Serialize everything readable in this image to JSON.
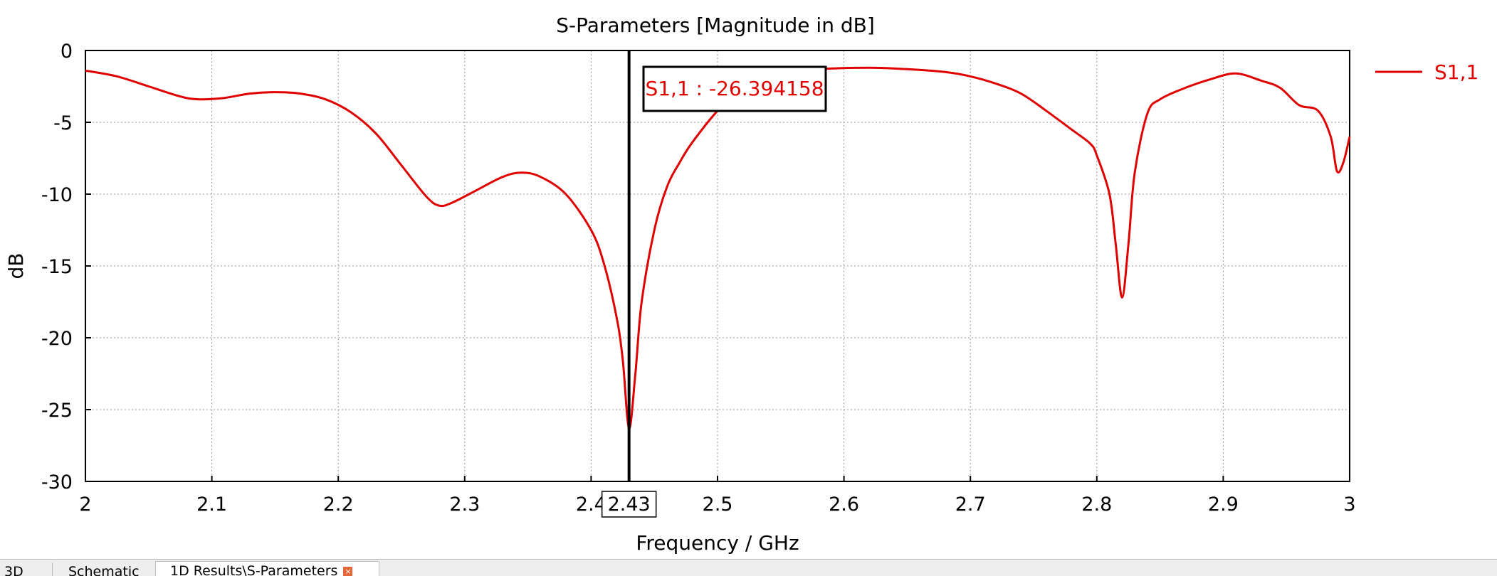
{
  "chart_data": {
    "type": "line",
    "title": "S-Parameters [Magnitude in dB]",
    "xlabel": "Frequency / GHz",
    "ylabel": "dB",
    "xlim": [
      2,
      3
    ],
    "ylim": [
      -30,
      0
    ],
    "x_ticks": [
      "2",
      "2.1",
      "2.2",
      "2.3",
      "2.4",
      "2.5",
      "2.6",
      "2.7",
      "2.8",
      "2.9",
      "3"
    ],
    "x_tick_values": [
      2.0,
      2.1,
      2.2,
      2.3,
      2.4,
      2.5,
      2.6,
      2.7,
      2.8,
      2.9,
      3.0
    ],
    "y_ticks": [
      "0",
      "-5",
      "-10",
      "-15",
      "-20",
      "-25",
      "-30"
    ],
    "y_tick_values": [
      0,
      -5,
      -10,
      -15,
      -20,
      -25,
      -30
    ],
    "grid": true,
    "legend_position": "right",
    "series": [
      {
        "name": "S1,1",
        "color": "#e00000",
        "x": [
          2.0,
          2.025,
          2.05,
          2.075,
          2.09,
          2.11,
          2.13,
          2.15,
          2.17,
          2.19,
          2.21,
          2.23,
          2.25,
          2.27,
          2.28,
          2.29,
          2.31,
          2.33,
          2.345,
          2.36,
          2.38,
          2.4,
          2.41,
          2.42,
          2.425,
          2.43,
          2.435,
          2.44,
          2.45,
          2.46,
          2.47,
          2.48,
          2.5,
          2.52,
          2.55,
          2.58,
          2.62,
          2.65,
          2.68,
          2.7,
          2.72,
          2.74,
          2.76,
          2.78,
          2.795,
          2.8,
          2.81,
          2.815,
          2.82,
          2.825,
          2.83,
          2.84,
          2.85,
          2.87,
          2.89,
          2.91,
          2.93,
          2.945,
          2.96,
          2.975,
          2.985,
          2.99,
          2.995,
          3.0
        ],
        "y": [
          -1.4,
          -1.8,
          -2.5,
          -3.2,
          -3.4,
          -3.3,
          -3.0,
          -2.9,
          -3.0,
          -3.4,
          -4.3,
          -5.8,
          -8.0,
          -10.2,
          -10.8,
          -10.6,
          -9.7,
          -8.8,
          -8.5,
          -8.8,
          -10.0,
          -12.5,
          -14.8,
          -18.5,
          -21.5,
          -26.3,
          -22.5,
          -17.5,
          -12.5,
          -9.5,
          -7.8,
          -6.4,
          -4.2,
          -2.6,
          -1.6,
          -1.3,
          -1.2,
          -1.3,
          -1.5,
          -1.8,
          -2.3,
          -3.0,
          -4.2,
          -5.5,
          -6.5,
          -7.3,
          -10.0,
          -13.5,
          -17.2,
          -13.5,
          -8.5,
          -4.4,
          -3.4,
          -2.6,
          -2.0,
          -1.6,
          -2.1,
          -2.6,
          -3.8,
          -4.2,
          -6.0,
          -8.4,
          -7.8,
          -6.0
        ]
      }
    ],
    "marker": {
      "x": 2.43,
      "label": "S1,1 : -26.394158",
      "x_label": "2.43"
    }
  },
  "tabs": [
    {
      "label": "3D"
    },
    {
      "label": "Schematic"
    },
    {
      "label": "1D Results\\S-Parameters"
    }
  ]
}
